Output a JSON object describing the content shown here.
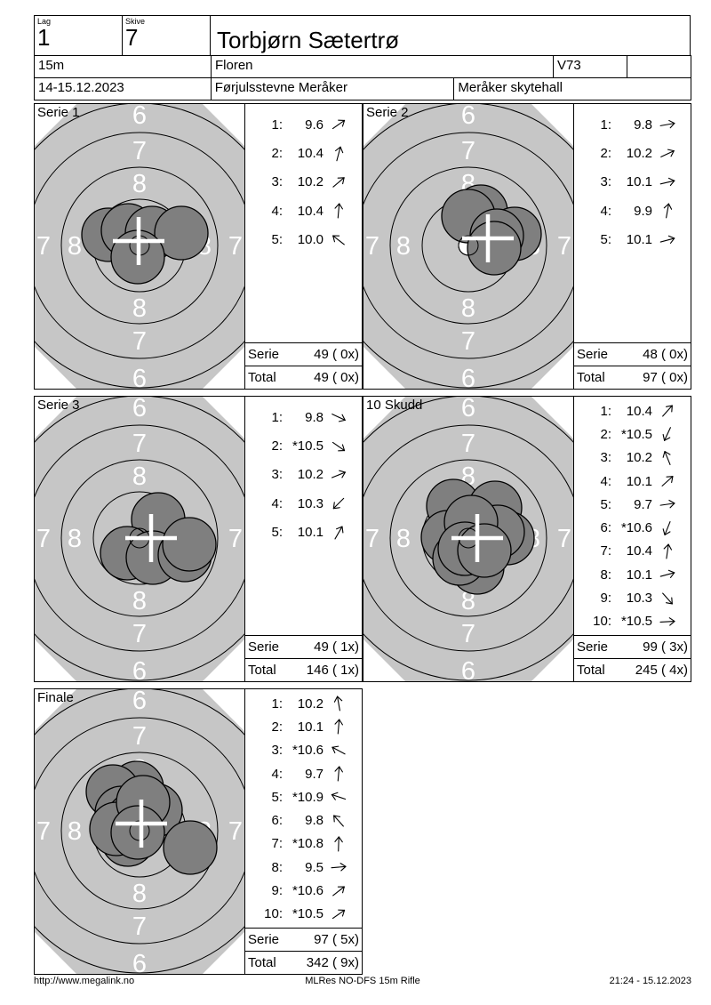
{
  "header": {
    "lag_label": "Lag",
    "lag_value": "1",
    "skive_label": "Skive",
    "skive_value": "7",
    "shooter_name": "Torbjørn Sætertrø",
    "distance": "15m",
    "club": "Floren",
    "class": "V73",
    "date_range": "14-15.12.2023",
    "event_name": "Førjulsstevne Meråker",
    "venue": "Meråker skytehall"
  },
  "colors": {
    "target_bg": "#c6c6c6",
    "shot_fill": "#7f7f7f",
    "ring_stroke": "#000000",
    "marker": "#ffffff"
  },
  "ring_labels": {
    "inner": "8",
    "middle": "7",
    "outer": "6"
  },
  "panels": [
    {
      "title": "Serie 1",
      "shots": [
        {
          "no": "1:",
          "value": "9.6",
          "dir": 35
        },
        {
          "no": "2:",
          "value": "10.4",
          "dir": 75
        },
        {
          "no": "3:",
          "value": "10.2",
          "dir": 40
        },
        {
          "no": "4:",
          "value": "10.4",
          "dir": 85
        },
        {
          "no": "5:",
          "value": "10.0",
          "dir": 142
        }
      ],
      "serie_label": "Serie",
      "serie_value": "49 ( 0x)",
      "total_label": "Total",
      "total_value": "49 ( 0x)",
      "target": {
        "cross": [
          -1,
          -5
        ],
        "hits": [
          [
            -35,
            -12
          ],
          [
            -13,
            -17
          ],
          [
            14,
            -14
          ],
          [
            47,
            -14
          ],
          [
            -2,
            13
          ]
        ]
      }
    },
    {
      "title": "Serie 2",
      "shots": [
        {
          "no": "1:",
          "value": "9.8",
          "dir": 10
        },
        {
          "no": "2:",
          "value": "10.2",
          "dir": 25
        },
        {
          "no": "3:",
          "value": "10.1",
          "dir": 13
        },
        {
          "no": "4:",
          "value": "9.9",
          "dir": 80
        },
        {
          "no": "5:",
          "value": "10.1",
          "dir": 15
        }
      ],
      "serie_label": "Serie",
      "serie_value": "48 ( 0x)",
      "total_label": "Total",
      "total_value": "97 ( 0x)",
      "target": {
        "cross": [
          22,
          -8
        ],
        "hits": [
          [
            14,
            -38
          ],
          [
            0,
            -33
          ],
          [
            52,
            -13
          ],
          [
            32,
            -11
          ],
          [
            29,
            3
          ]
        ]
      }
    },
    {
      "title": "Serie 3",
      "shots": [
        {
          "no": "1:",
          "value": "9.8",
          "dir": -25
        },
        {
          "no": "2:",
          "value": "*10.5",
          "dir": -35
        },
        {
          "no": "3:",
          "value": "10.2",
          "dir": 22
        },
        {
          "no": "4:",
          "value": "10.3",
          "dir": -135
        },
        {
          "no": "5:",
          "value": "10.1",
          "dir": 60
        }
      ],
      "serie_label": "Serie",
      "serie_value": "49 ( 1x)",
      "total_label": "Total",
      "total_value": "146 ( 1x)",
      "target": {
        "cross": [
          13,
          0
        ],
        "hits": [
          [
            21,
            -21
          ],
          [
            -14,
            17
          ],
          [
            15,
            22
          ],
          [
            51,
            19
          ],
          [
            56,
            7
          ]
        ]
      }
    },
    {
      "title": "10 Skudd",
      "shots": [
        {
          "no": "1:",
          "value": "10.4",
          "dir": 48
        },
        {
          "no": "2:",
          "value": "*10.5",
          "dir": -115
        },
        {
          "no": "3:",
          "value": "10.2",
          "dir": 112
        },
        {
          "no": "4:",
          "value": "10.1",
          "dir": 42
        },
        {
          "no": "5:",
          "value": "9.7",
          "dir": 8
        },
        {
          "no": "6:",
          "value": "*10.6",
          "dir": -112
        },
        {
          "no": "7:",
          "value": "10.4",
          "dir": 82
        },
        {
          "no": "8:",
          "value": "10.1",
          "dir": 15
        },
        {
          "no": "9:",
          "value": "10.3",
          "dir": -48
        },
        {
          "no": "10:",
          "value": "*10.5",
          "dir": 3
        }
      ],
      "serie_label": "Serie",
      "serie_value": "99 ( 3x)",
      "total_label": "Total",
      "total_value": "245 ( 4x)",
      "target": {
        "cross": [
          10,
          0
        ],
        "hits": [
          [
            -17,
            -36
          ],
          [
            30,
            -34
          ],
          [
            -23,
            -1
          ],
          [
            44,
            0
          ],
          [
            10,
            33
          ],
          [
            -10,
            23
          ],
          [
            33,
            -7
          ],
          [
            3,
            -18
          ],
          [
            -4,
            12
          ],
          [
            18,
            14
          ]
        ]
      }
    },
    {
      "title": "Finale",
      "shots": [
        {
          "no": "1:",
          "value": "10.2",
          "dir": 100
        },
        {
          "no": "2:",
          "value": "10.1",
          "dir": 85
        },
        {
          "no": "3:",
          "value": "*10.6",
          "dir": 152
        },
        {
          "no": "4:",
          "value": "9.7",
          "dir": 85
        },
        {
          "no": "5:",
          "value": "*10.9",
          "dir": 162
        },
        {
          "no": "6:",
          "value": "9.8",
          "dir": 132
        },
        {
          "no": "7:",
          "value": "*10.8",
          "dir": 88
        },
        {
          "no": "8:",
          "value": "9.5",
          "dir": 5
        },
        {
          "no": "9:",
          "value": "*10.6",
          "dir": 38
        },
        {
          "no": "10:",
          "value": "*10.5",
          "dir": 35
        }
      ],
      "serie_label": "Serie",
      "serie_value": "97 ( 5x)",
      "total_label": "Total",
      "total_value": "342 ( 9x)",
      "target": {
        "cross": [
          2,
          -8
        ],
        "hits": [
          [
            -3,
            -48
          ],
          [
            -30,
            -44
          ],
          [
            -20,
            -20
          ],
          [
            -7,
            -13
          ],
          [
            18,
            -23
          ],
          [
            57,
            19
          ],
          [
            -13,
            10
          ],
          [
            -26,
            -2
          ],
          [
            4,
            -32
          ],
          [
            -2,
            2
          ]
        ]
      }
    }
  ],
  "footer": {
    "left": "http://www.megalink.no",
    "center": "MLRes NO-DFS 15m Rifle",
    "right": "21:24 - 15.12.2023"
  }
}
